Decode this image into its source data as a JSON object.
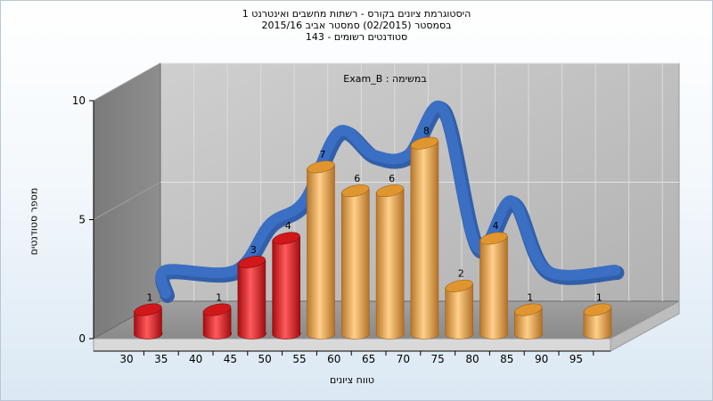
{
  "chart_data": {
    "type": "bar",
    "title_lines": [
      "היסטוגרמת ציונים בקורס - רשתות מחשבים ואינטרנט 1",
      "בסמסטר  (02/2015)  סמסטר אביב 2015/16",
      "סטודנטים רשומים - 143"
    ],
    "series_label": "Exam_B : במשימה",
    "xlabel": "טווח ציונים",
    "ylabel": "מספר סטודנטים",
    "x_ticks": [
      "30",
      "35",
      "40",
      "45",
      "50",
      "55",
      "60",
      "65",
      "70",
      "75",
      "80",
      "85",
      "90",
      "95"
    ],
    "y_ticks": [
      0,
      5,
      10
    ],
    "ylim": [
      0,
      10
    ],
    "bar_positions": [
      30,
      40,
      45,
      50,
      55,
      60,
      65,
      70,
      75,
      80,
      85,
      95
    ],
    "values": [
      1,
      1,
      3,
      4,
      7,
      6,
      6,
      8,
      2,
      4,
      1,
      1
    ],
    "bar_colors": [
      "#e8262a",
      "#e8262a",
      "#e8262a",
      "#e8262a",
      "#f0a848",
      "#f0a848",
      "#f0a848",
      "#f0a848",
      "#f0a848",
      "#f0a848",
      "#f0a848",
      "#f0a848"
    ],
    "curve_color": "#3a6fc4",
    "grid": true,
    "legend": "none"
  }
}
